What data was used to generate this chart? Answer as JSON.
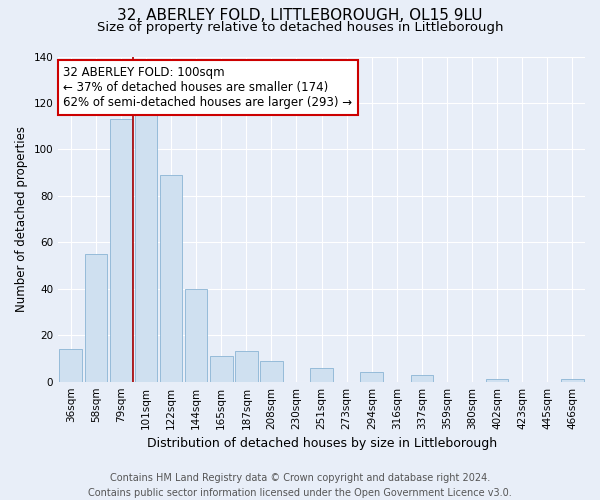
{
  "title": "32, ABERLEY FOLD, LITTLEBOROUGH, OL15 9LU",
  "subtitle": "Size of property relative to detached houses in Littleborough",
  "xlabel": "Distribution of detached houses by size in Littleborough",
  "ylabel": "Number of detached properties",
  "bar_labels": [
    "36sqm",
    "58sqm",
    "79sqm",
    "101sqm",
    "122sqm",
    "144sqm",
    "165sqm",
    "187sqm",
    "208sqm",
    "230sqm",
    "251sqm",
    "273sqm",
    "294sqm",
    "316sqm",
    "337sqm",
    "359sqm",
    "380sqm",
    "402sqm",
    "423sqm",
    "445sqm",
    "466sqm"
  ],
  "bar_values": [
    14,
    55,
    113,
    115,
    89,
    40,
    11,
    13,
    9,
    0,
    6,
    0,
    4,
    0,
    3,
    0,
    0,
    1,
    0,
    0,
    1
  ],
  "bar_color": "#cfe0f0",
  "bar_edge_color": "#8ab4d4",
  "vline_x_index": 3,
  "vline_color": "#aa0000",
  "annotation_text": "32 ABERLEY FOLD: 100sqm\n← 37% of detached houses are smaller (174)\n62% of semi-detached houses are larger (293) →",
  "annotation_box_edge_color": "#cc0000",
  "annotation_box_face_color": "#ffffff",
  "ylim": [
    0,
    140
  ],
  "yticks": [
    0,
    20,
    40,
    60,
    80,
    100,
    120,
    140
  ],
  "footer_line1": "Contains HM Land Registry data © Crown copyright and database right 2024.",
  "footer_line2": "Contains public sector information licensed under the Open Government Licence v3.0.",
  "bg_color": "#e8eef8",
  "plot_bg_color": "#e8eef8",
  "grid_color": "#ffffff",
  "title_fontsize": 11,
  "subtitle_fontsize": 9.5,
  "xlabel_fontsize": 9,
  "ylabel_fontsize": 8.5,
  "tick_fontsize": 7.5,
  "annotation_fontsize": 8.5,
  "footer_fontsize": 7
}
